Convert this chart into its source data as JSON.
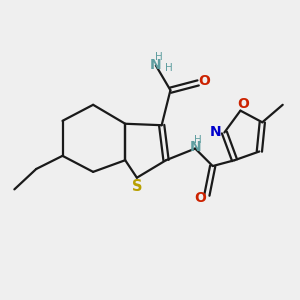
{
  "bg_color": "#efefef",
  "bond_color": "#1a1a1a",
  "S_color": "#b8a000",
  "NH_color": "#5f9ea0",
  "O_color": "#cc2200",
  "N_iso_color": "#0000cc",
  "O_iso_color": "#cc2200",
  "line_width": 1.6,
  "font_size": 8.0,
  "figsize": [
    3.0,
    3.0
  ],
  "dpi": 100,
  "xlim": [
    0,
    10
  ],
  "ylim": [
    0,
    10
  ]
}
